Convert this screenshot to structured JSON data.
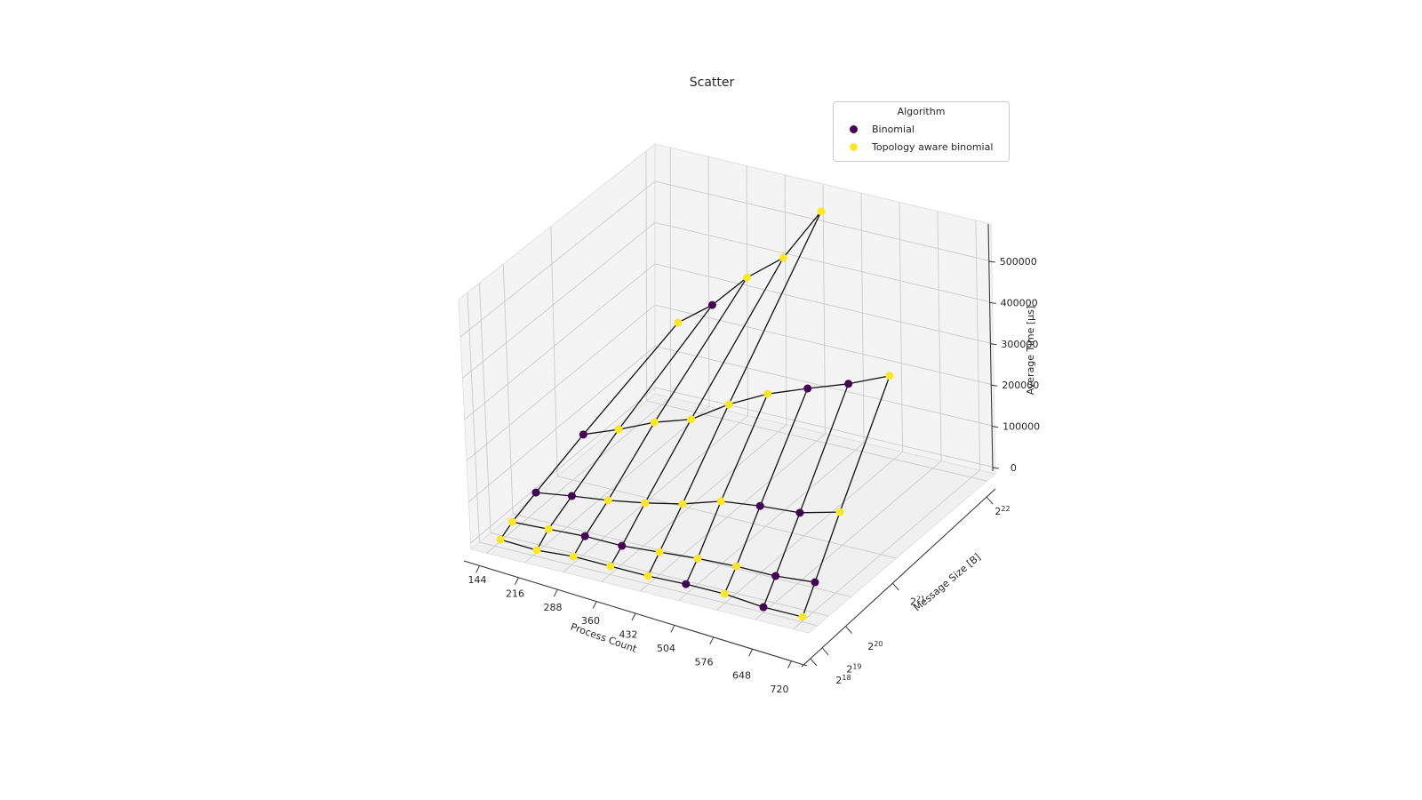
{
  "title": "Scatter",
  "legend": {
    "title": "Algorithm",
    "entries": [
      {
        "label": "Binomial",
        "color": "#440154"
      },
      {
        "label": "Topology aware binomial",
        "color": "#fde725"
      }
    ]
  },
  "axes": {
    "x": {
      "label": "Process Count",
      "ticks": [
        "144",
        "216",
        "288",
        "360",
        "432",
        "504",
        "576",
        "648",
        "720"
      ]
    },
    "y": {
      "label": "Message Size [B]",
      "ticks": [
        "2^18",
        "2^19",
        "2^20",
        "2^21",
        "2^22"
      ]
    },
    "z": {
      "label": "Average Time [µs]",
      "ticks": [
        "0",
        "100000",
        "200000",
        "300000",
        "400000",
        "500000"
      ]
    }
  },
  "chart_data": {
    "type": "scatter",
    "projection": "3d",
    "title": "Scatter",
    "xlabel": "Process Count",
    "ylabel": "Message Size [B]",
    "zlabel": "Average Time [µs]",
    "legend_position": "upper right",
    "grid": true,
    "process_counts": [
      144,
      216,
      288,
      360,
      432,
      504,
      576,
      648,
      720
    ],
    "message_sizes_bytes": [
      262144,
      524288,
      1048576,
      2097152,
      4194304
    ],
    "message_size_tick_labels": [
      "2^18",
      "2^19",
      "2^20",
      "2^21",
      "2^22"
    ],
    "zlim": [
      0,
      500000
    ],
    "series": [
      {
        "message_size": "2^18",
        "times_us": [
          6500,
          4300,
          13000,
          13000,
          13000,
          17000,
          17000,
          8600,
          8600
        ],
        "algorithms": [
          "T",
          "T",
          "T",
          "T",
          "T",
          "B",
          "T",
          "B",
          "T"
        ]
      },
      {
        "message_size": "2^19",
        "times_us": [
          20000,
          27000,
          34000,
          35000,
          44000,
          53000,
          58000,
          59000,
          68000
        ],
        "algorithms": [
          "T",
          "T",
          "B",
          "B",
          "T",
          "T",
          "T",
          "B",
          "B"
        ]
      },
      {
        "message_size": "2^20",
        "times_us": [
          33000,
          50000,
          65000,
          84000,
          107000,
          139000,
          153000,
          162000,
          189000
        ],
        "algorithms": [
          "B",
          "B",
          "T",
          "T",
          "T",
          "T",
          "B",
          "B",
          "T"
        ]
      },
      {
        "message_size": "2^21",
        "times_us": [
          57000,
          97000,
          142000,
          177000,
          241000,
          294000,
          335000,
          374000,
          421000
        ],
        "algorithms": [
          "B",
          "T",
          "T",
          "T",
          "T",
          "T",
          "B",
          "B",
          "T"
        ]
      },
      {
        "message_size": "2^22",
        "times_us": [
          95000,
          170000,
          269000,
          349000,
          494000
        ],
        "algorithms": [
          "T",
          "B",
          "T",
          "T",
          "T"
        ]
      }
    ],
    "algorithm_key": {
      "B": "Binomial",
      "T": "Topology aware binomial"
    },
    "colors": {
      "Binomial": "#440154",
      "Topology aware binomial": "#fde725"
    },
    "wireframe_color": "#111111"
  }
}
